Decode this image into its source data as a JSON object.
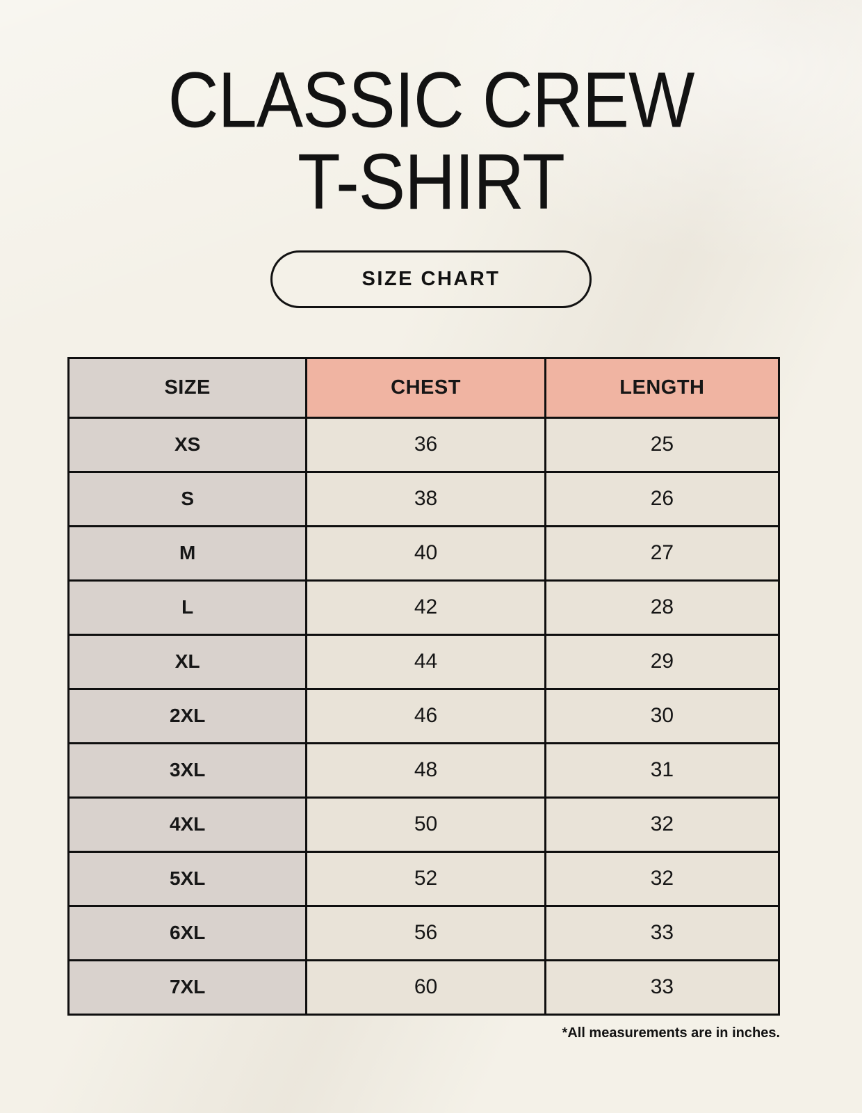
{
  "header": {
    "title_line1": "CLASSIC CREW",
    "title_line2": "T-SHIRT",
    "size_chart_button": "SIZE CHART"
  },
  "footnote": "*All measurements are in inches.",
  "colors": {
    "background": "#f4f1e8",
    "header_accent": "#f0b4a2",
    "size_column": "#d9d2cd",
    "data_cell": "#e9e3d8",
    "border": "#0f0f0f",
    "text": "#161616"
  },
  "chart_data": {
    "type": "table",
    "title": "Classic Crew T-Shirt Size Chart",
    "columns": [
      "SIZE",
      "CHEST",
      "LENGTH"
    ],
    "units": "inches",
    "rows": [
      {
        "size": "XS",
        "chest": 36,
        "length": 25
      },
      {
        "size": "S",
        "chest": 38,
        "length": 26
      },
      {
        "size": "M",
        "chest": 40,
        "length": 27
      },
      {
        "size": "L",
        "chest": 42,
        "length": 28
      },
      {
        "size": "XL",
        "chest": 44,
        "length": 29
      },
      {
        "size": "2XL",
        "chest": 46,
        "length": 30
      },
      {
        "size": "3XL",
        "chest": 48,
        "length": 31
      },
      {
        "size": "4XL",
        "chest": 50,
        "length": 32
      },
      {
        "size": "5XL",
        "chest": 52,
        "length": 32
      },
      {
        "size": "6XL",
        "chest": 56,
        "length": 33
      },
      {
        "size": "7XL",
        "chest": 60,
        "length": 33
      }
    ]
  }
}
